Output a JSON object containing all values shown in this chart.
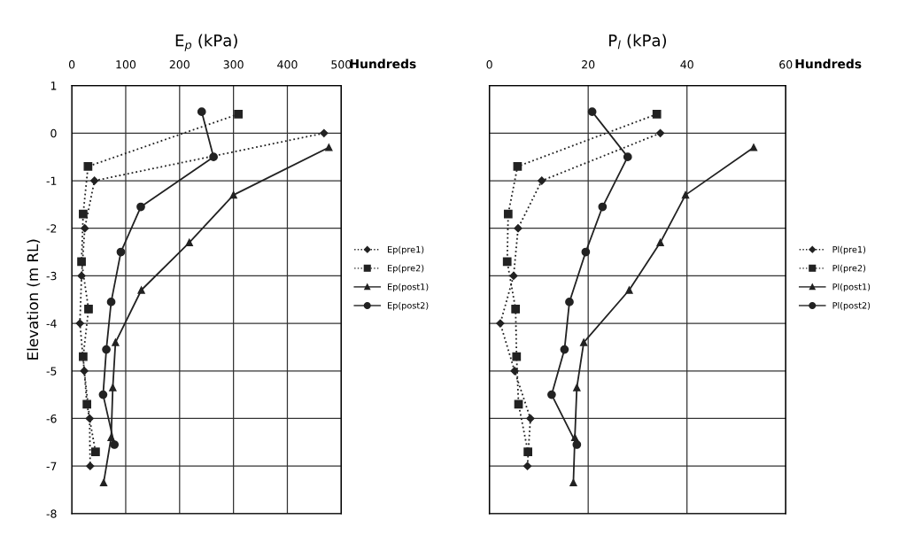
{
  "chart_data": [
    {
      "type": "line",
      "title": "E$_{p}$ (kPa)",
      "ylabel": "Elevation (m RL)",
      "annotations": [
        "Hundreds"
      ],
      "xlim": [
        0,
        500
      ],
      "xticks": [
        0,
        100,
        200,
        300,
        400,
        500
      ],
      "ylim": [
        -8,
        1
      ],
      "yticks": [
        -8,
        -7,
        -6,
        -5,
        -4,
        -3,
        -2,
        -1,
        0,
        1
      ],
      "grid": true,
      "legend": "right",
      "series": [
        {
          "name": "Ep(pre1)",
          "color": "#222222",
          "marker": "diamond",
          "line_style": "dotted",
          "x": [
            468,
            42,
            24,
            18,
            15,
            23,
            33,
            34
          ],
          "values": [
            0,
            -1,
            -2,
            -3,
            -4,
            -5,
            -6,
            -7
          ]
        },
        {
          "name": "Ep(pre2)",
          "color": "#222222",
          "marker": "square",
          "line_style": "dotted",
          "x": [
            309,
            30,
            21,
            18,
            31,
            21,
            28,
            44
          ],
          "values": [
            0.4,
            -0.7,
            -1.7,
            -2.7,
            -3.7,
            -4.7,
            -5.7,
            -6.7
          ]
        },
        {
          "name": "Ep(post1)",
          "color": "#222222",
          "marker": "triangle",
          "line_style": "solid",
          "x": [
            477,
            300,
            218,
            129,
            81,
            76,
            73,
            59
          ],
          "values": [
            -0.3,
            -1.3,
            -2.3,
            -3.3,
            -4.4,
            -5.35,
            -6.4,
            -7.35
          ]
        },
        {
          "name": "Ep(post2)",
          "color": "#222222",
          "marker": "circle",
          "line_style": "solid",
          "x": [
            241,
            263,
            128,
            91,
            73,
            64,
            58,
            79
          ],
          "values": [
            0.45,
            -0.5,
            -1.55,
            -2.5,
            -3.55,
            -4.55,
            -5.5,
            -6.55
          ]
        }
      ]
    },
    {
      "type": "line",
      "title": "P$_{l}$ (kPa)",
      "annotations": [
        "Hundreds"
      ],
      "xlim": [
        0,
        60
      ],
      "xticks": [
        0,
        20,
        40,
        60
      ],
      "ylim": [
        -8,
        1
      ],
      "yticks": [
        -8,
        -7,
        -6,
        -5,
        -4,
        -3,
        -2,
        -1,
        0,
        1
      ],
      "tick_labels": "x",
      "grid": true,
      "legend": "right",
      "series": [
        {
          "name": "Pl(pre1)",
          "color": "#222222",
          "marker": "diamond",
          "line_style": "dotted",
          "x": [
            34.6,
            10.6,
            5.8,
            4.9,
            2.2,
            5.1,
            8.3,
            7.7
          ],
          "values": [
            0,
            -1,
            -2,
            -3,
            -4,
            -5,
            -6,
            -7
          ]
        },
        {
          "name": "Pl(pre2)",
          "color": "#222222",
          "marker": "square",
          "line_style": "dotted",
          "x": [
            33.9,
            5.7,
            3.8,
            3.6,
            5.3,
            5.5,
            5.9,
            7.8
          ],
          "values": [
            0.4,
            -0.7,
            -1.7,
            -2.7,
            -3.7,
            -4.7,
            -5.7,
            -6.7
          ]
        },
        {
          "name": "Pl(post1)",
          "color": "#222222",
          "marker": "triangle",
          "line_style": "solid",
          "x": [
            53.5,
            39.7,
            34.6,
            28.3,
            19.1,
            17.7,
            17.3,
            17.0
          ],
          "values": [
            -0.3,
            -1.3,
            -2.3,
            -3.3,
            -4.4,
            -5.35,
            -6.4,
            -7.35
          ]
        },
        {
          "name": "Pl(post2)",
          "color": "#222222",
          "marker": "circle",
          "line_style": "solid",
          "x": [
            20.8,
            28.0,
            22.9,
            19.5,
            16.2,
            15.2,
            12.6,
            17.7
          ],
          "values": [
            0.45,
            -0.5,
            -1.55,
            -2.5,
            -3.55,
            -4.55,
            -5.5,
            -6.55
          ]
        }
      ]
    }
  ]
}
